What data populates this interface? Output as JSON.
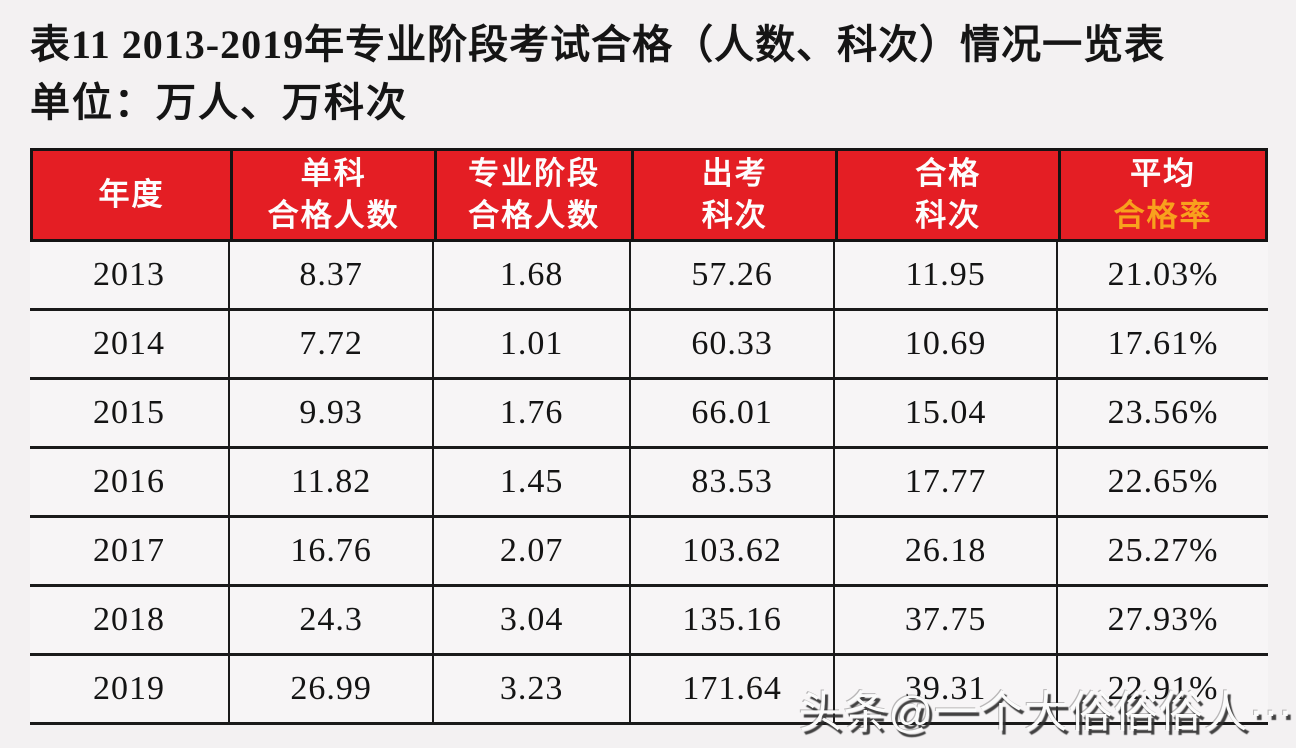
{
  "title": "表11  2013-2019年专业阶段考试合格（人数、科次）情况一览表",
  "subtitle": "单位：万人、万科次",
  "colors": {
    "header_bg": "#e41e24",
    "header_text": "#fdfdfd",
    "header_accent_text": "#f8a11d",
    "border": "#141414",
    "page_bg": "#f3f1f2",
    "row_bg": "#f7f5f6"
  },
  "table": {
    "columns": [
      {
        "lines": [
          "年度"
        ],
        "accent_line": -1
      },
      {
        "lines": [
          "单科",
          "合格人数"
        ],
        "accent_line": -1
      },
      {
        "lines": [
          "专业阶段",
          "合格人数"
        ],
        "accent_line": -1
      },
      {
        "lines": [
          "出考",
          "科次"
        ],
        "accent_line": -1
      },
      {
        "lines": [
          "合格",
          "科次"
        ],
        "accent_line": -1
      },
      {
        "lines": [
          "平均",
          "合格率"
        ],
        "accent_line": 1
      }
    ],
    "rows": [
      [
        "2013",
        "8.37",
        "1.68",
        "57.26",
        "11.95",
        "21.03%"
      ],
      [
        "2014",
        "7.72",
        "1.01",
        "60.33",
        "10.69",
        "17.61%"
      ],
      [
        "2015",
        "9.93",
        "1.76",
        "66.01",
        "15.04",
        "23.56%"
      ],
      [
        "2016",
        "11.82",
        "1.45",
        "83.53",
        "17.77",
        "22.65%"
      ],
      [
        "2017",
        "16.76",
        "2.07",
        "103.62",
        "26.18",
        "25.27%"
      ],
      [
        "2018",
        "24.3",
        "3.04",
        "135.16",
        "37.75",
        "27.93%"
      ],
      [
        "2019",
        "26.99",
        "3.23",
        "171.64",
        "39.31",
        "22.91%"
      ]
    ]
  },
  "watermark": {
    "text": "头条@一个大俗俗俗人⋯"
  }
}
